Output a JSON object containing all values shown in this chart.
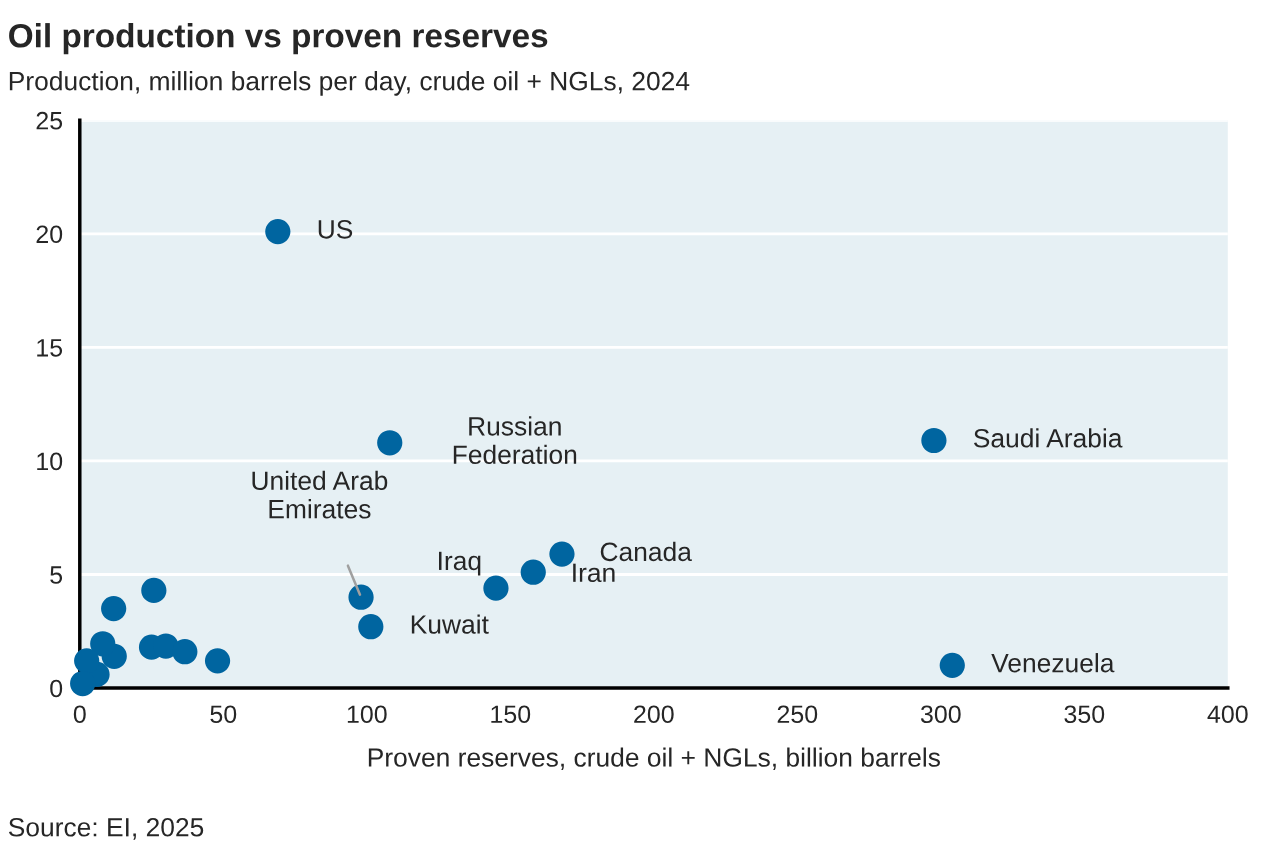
{
  "chart_data": {
    "type": "scatter",
    "title": "Oil production vs proven reserves",
    "subtitle": "Production, million barrels per day, crude oil + NGLs, 2024",
    "xlabel": "Proven reserves, crude oil + NGLs, billion barrels",
    "series": [
      {
        "color": "#0065a0",
        "x": [
          69,
          108,
          297.6,
          98,
          101.4,
          145,
          158,
          168,
          304,
          25.8,
          11.8,
          25,
          30,
          36.6,
          48,
          12,
          8,
          6,
          2.4,
          1
        ],
        "values": [
          20.1,
          10.8,
          10.9,
          4.0,
          2.7,
          4.4,
          5.1,
          5.9,
          1.0,
          4.3,
          3.5,
          1.8,
          1.85,
          1.6,
          1.2,
          1.4,
          1.95,
          0.6,
          1.2,
          0.2
        ]
      }
    ],
    "xlim": [
      0,
      400
    ],
    "xticks": [
      0,
      50,
      100,
      150,
      200,
      250,
      300,
      350,
      400
    ],
    "ylim": [
      0,
      25
    ],
    "yticks": [
      0,
      5,
      10,
      15,
      20,
      25
    ],
    "grid": "y",
    "legend": false,
    "marker": "circle",
    "annotations": [
      {
        "text": "US",
        "x": 69,
        "y": 20.1
      },
      {
        "text": "Russian\nFederation",
        "x": 108,
        "y": 10.8
      },
      {
        "text": "Saudi Arabia",
        "x": 297.6,
        "y": 10.9
      },
      {
        "text": "United Arab\nEmirates",
        "x": 98,
        "y": 4.0
      },
      {
        "text": "Kuwait",
        "x": 101.4,
        "y": 2.7
      },
      {
        "text": "Iraq",
        "x": 145,
        "y": 4.4
      },
      {
        "text": "Iran",
        "x": 158,
        "y": 5.1
      },
      {
        "text": "Canada",
        "x": 168,
        "y": 5.9
      },
      {
        "text": "Venezuela",
        "x": 304,
        "y": 1.0
      },
      "Source: EI, 2025"
    ]
  }
}
